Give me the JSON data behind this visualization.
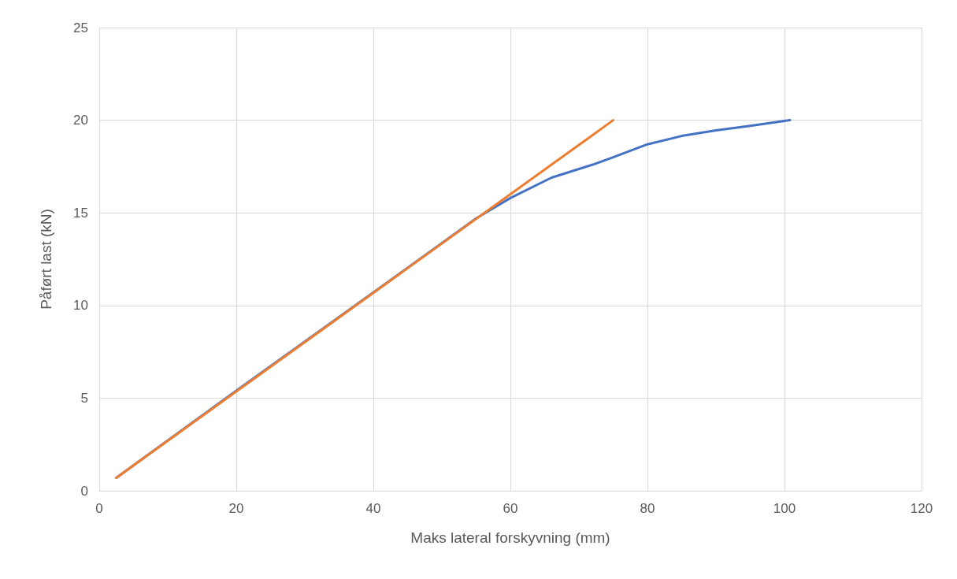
{
  "chart_data": {
    "type": "line",
    "xlabel": "Maks lateral forskyvning (mm)",
    "ylabel": "Påført last (kN)",
    "xlim": [
      0,
      120
    ],
    "xticks": [
      0,
      20,
      40,
      60,
      80,
      100,
      120
    ],
    "ylim": [
      0,
      25
    ],
    "yticks": [
      0,
      5,
      10,
      15,
      20,
      25
    ],
    "grid": true,
    "marker": "none",
    "line_style": "solid",
    "series": [
      {
        "color": "#4472c4",
        "x": [
          2.5,
          20,
          40,
          55,
          60,
          66,
          72,
          75,
          80,
          85,
          90,
          95,
          100.8
        ],
        "values": [
          0.7,
          5.4,
          10.7,
          14.7,
          15.8,
          16.9,
          17.6,
          18.0,
          18.7,
          19.15,
          19.45,
          19.7,
          20.0
        ]
      },
      {
        "color": "#ed7d31",
        "x": [
          2.5,
          75
        ],
        "values": [
          0.7,
          20.0
        ]
      }
    ]
  }
}
